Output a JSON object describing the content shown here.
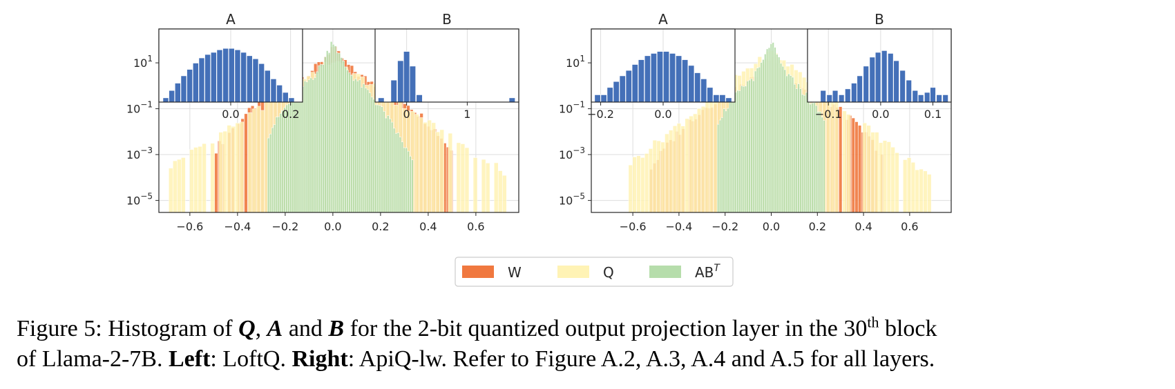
{
  "chart_data": [
    {
      "type": "histogram",
      "panel": "left",
      "y_scale": "log",
      "xlim": [
        -0.73,
        0.78
      ],
      "ylim": [
        3e-06,
        300
      ],
      "xticks": [
        "−0.6",
        "−0.4",
        "−0.2",
        "0.0",
        "0.2",
        "0.4",
        "0.6"
      ],
      "xtick_values": [
        -0.6,
        -0.4,
        -0.2,
        0.0,
        0.2,
        0.4,
        0.6
      ],
      "yticks": [
        "10⁻⁵",
        "10⁻³",
        "10⁻¹",
        "10¹"
      ],
      "ytick_exps": [
        -5,
        -3,
        -1,
        1
      ],
      "series": [
        {
          "name": "W",
          "color": "#f0783f",
          "peak": 50,
          "sigma": 0.03,
          "tail": 0.2,
          "tailPow": 2.2,
          "start": -0.49,
          "end": 0.5,
          "bw": 0.0139,
          "dense": 0.94,
          "floor": 1.5e-05
        },
        {
          "name": "Q",
          "color": "#fff3b5",
          "peak": 12,
          "sigma": 0.065,
          "tail": 0.15,
          "tailPow": 2.3,
          "start": -0.68,
          "end": 0.72,
          "bw": 0.0175,
          "dense": 0.82,
          "floor": 1.5e-05
        },
        {
          "name": "ABᵀ",
          "color": "#b6ddab",
          "peak": 110,
          "sigma": 0.015,
          "tail": 0.09,
          "tailPow": 1.7,
          "start": -0.27,
          "end": 0.34,
          "bw": 0.0085,
          "dense": 1.0,
          "floor": 2.5e-05
        }
      ],
      "insets": [
        {
          "title": "A",
          "xlim": [
            -0.24,
            0.24
          ],
          "ylim_exp": [
            -1,
            2
          ],
          "xticks": [
            "0.0",
            "0.2"
          ],
          "xtick_values": [
            0.0,
            0.2
          ],
          "bars": [
            [
              -0.217,
              0.15
            ],
            [
              -0.197,
              0.3
            ],
            [
              -0.177,
              0.6
            ],
            [
              -0.157,
              1.2
            ],
            [
              -0.137,
              2.2
            ],
            [
              -0.117,
              4
            ],
            [
              -0.097,
              6.5
            ],
            [
              -0.077,
              9
            ],
            [
              -0.057,
              11
            ],
            [
              -0.037,
              14
            ],
            [
              -0.017,
              16
            ],
            [
              0.003,
              16
            ],
            [
              0.023,
              14
            ],
            [
              0.043,
              11
            ],
            [
              0.063,
              8
            ],
            [
              0.083,
              6
            ],
            [
              0.103,
              3.8
            ],
            [
              0.123,
              2
            ],
            [
              0.143,
              0.9
            ],
            [
              0.163,
              0.5
            ],
            [
              0.183,
              0.25
            ],
            [
              0.203,
              0.15
            ]
          ],
          "bar_width": 0.019
        },
        {
          "title": "B",
          "xlim": [
            -0.52,
            1.85
          ],
          "ylim_exp": [
            -1,
            2
          ],
          "xticks": [
            "0",
            "1"
          ],
          "xtick_values": [
            0,
            1
          ],
          "bars": [
            [
              -0.42,
              0.15
            ],
            [
              -0.21,
              0.8
            ],
            [
              -0.1,
              5
            ],
            [
              0.0,
              12
            ],
            [
              0.1,
              3
            ],
            [
              0.21,
              0.2
            ],
            [
              1.74,
              0.15
            ]
          ],
          "bar_width": 0.1
        }
      ]
    },
    {
      "type": "histogram",
      "panel": "right",
      "y_scale": "log",
      "xlim": [
        -0.78,
        0.78
      ],
      "ylim": [
        3e-06,
        300
      ],
      "xticks": [
        "−0.6",
        "−0.4",
        "−0.2",
        "0.0",
        "0.2",
        "0.4",
        "0.6"
      ],
      "xtick_values": [
        -0.6,
        -0.4,
        -0.2,
        0.0,
        0.2,
        0.4,
        0.6
      ],
      "yticks": [
        "10⁻⁵",
        "10⁻³",
        "10⁻¹",
        "10¹"
      ],
      "ytick_exps": [
        -5,
        -3,
        -1,
        1
      ],
      "series": [
        {
          "name": "W",
          "color": "#f0783f",
          "peak": 20,
          "sigma": 0.03,
          "tail": 0.2,
          "tailPow": 2.2,
          "start": -0.52,
          "end": 0.49,
          "bw": 0.0139,
          "dense": 0.94,
          "floor": 1.5e-05
        },
        {
          "name": "Q",
          "color": "#fff3b5",
          "peak": 30,
          "sigma": 0.055,
          "tail": 0.14,
          "tailPow": 2.3,
          "start": -0.61,
          "end": 0.7,
          "bw": 0.0175,
          "dense": 0.85,
          "floor": 1.5e-05
        },
        {
          "name": "ABᵀ",
          "color": "#b6ddab",
          "peak": 90,
          "sigma": 0.015,
          "tail": 0.09,
          "tailPow": 1.7,
          "start": -0.23,
          "end": 0.23,
          "bw": 0.0085,
          "dense": 1.0,
          "floor": 2.5e-05
        }
      ],
      "insets": [
        {
          "title": "A",
          "xlim": [
            -0.23,
            0.23
          ],
          "ylim_exp": [
            -1,
            2
          ],
          "xticks": [
            "−0.2",
            "0.0"
          ],
          "xtick_values": [
            -0.2,
            0.0
          ],
          "bars": [
            [
              -0.21,
              0.2
            ],
            [
              -0.19,
              0.2
            ],
            [
              -0.17,
              0.4
            ],
            [
              -0.15,
              0.7
            ],
            [
              -0.13,
              1.2
            ],
            [
              -0.11,
              2
            ],
            [
              -0.09,
              3.5
            ],
            [
              -0.07,
              5.5
            ],
            [
              -0.05,
              8
            ],
            [
              -0.03,
              10
            ],
            [
              -0.01,
              12
            ],
            [
              0.01,
              12
            ],
            [
              0.03,
              10
            ],
            [
              0.05,
              8
            ],
            [
              0.07,
              5.5
            ],
            [
              0.09,
              3.2
            ],
            [
              0.11,
              1.6
            ],
            [
              0.13,
              0.9
            ],
            [
              0.15,
              0.4
            ],
            [
              0.17,
              0.2
            ],
            [
              0.19,
              0.2
            ],
            [
              0.21,
              0.15
            ]
          ],
          "bar_width": 0.019
        },
        {
          "title": "B",
          "xlim": [
            -0.14,
            0.135
          ],
          "ylim_exp": [
            -1,
            2
          ],
          "xticks": [
            "−0.1",
            "0.0",
            "0.1"
          ],
          "xtick_values": [
            -0.1,
            0.0,
            0.1
          ],
          "bars": [
            [
              -0.11,
              0.3
            ],
            [
              -0.098,
              0.2
            ],
            [
              -0.087,
              0.3
            ],
            [
              -0.075,
              0.2
            ],
            [
              -0.063,
              0.35
            ],
            [
              -0.051,
              0.6
            ],
            [
              -0.04,
              1.2
            ],
            [
              -0.028,
              3
            ],
            [
              -0.016,
              7
            ],
            [
              -0.005,
              11
            ],
            [
              0.007,
              13
            ],
            [
              0.019,
              10
            ],
            [
              0.03,
              5
            ],
            [
              0.042,
              2
            ],
            [
              0.054,
              0.8
            ],
            [
              0.066,
              0.3
            ],
            [
              0.077,
              0.2
            ],
            [
              0.089,
              0.25
            ],
            [
              0.1,
              0.4
            ],
            [
              0.112,
              0.2
            ],
            [
              0.124,
              0.2
            ]
          ],
          "bar_width": 0.0105
        }
      ]
    }
  ],
  "legend": {
    "items": [
      {
        "label": "W",
        "color": "#f0783f"
      },
      {
        "label": "Q",
        "color": "#fff3b5"
      },
      {
        "label": "AB",
        "sup": "T",
        "color": "#b6ddab"
      }
    ]
  },
  "caption": {
    "prefix": "Figure 5: Histogram of ",
    "q": "Q",
    "comma": ", ",
    "a": "A",
    "and": " and ",
    "b": "B",
    "mid": " for the 2-bit quantized output projection layer in the 30",
    "th": "th",
    "after_sup": " block",
    "line2_start": "of Llama-2-7B. ",
    "left_label": "Left",
    "left_text": ": LoftQ. ",
    "right_label": "Right",
    "right_text": ": ApiQ-lw. Refer to Figure A.2, A.3, A.4 and A.5 for all layers."
  }
}
